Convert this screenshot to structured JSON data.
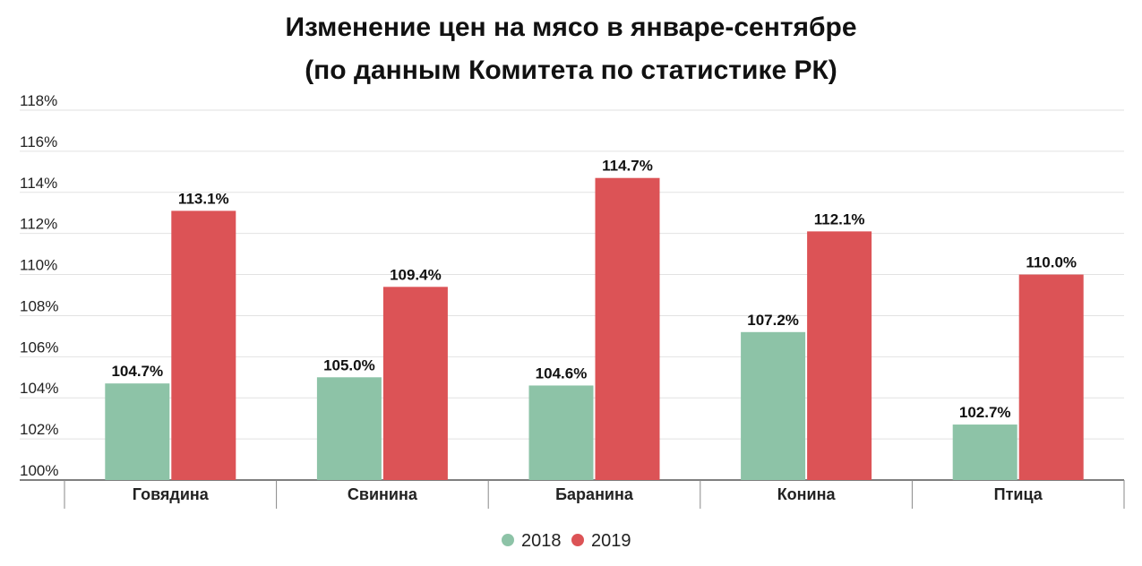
{
  "chart_data": {
    "type": "bar",
    "title": "Изменение цен на мясо в январе-сентябре",
    "subtitle": "(по данным Комитета по статистике РК)",
    "categories": [
      "Говядина",
      "Свинина",
      "Баранина",
      "Конина",
      "Птица"
    ],
    "series": [
      {
        "name": "2018",
        "color": "#8dc3a7",
        "values": [
          104.7,
          105.0,
          104.6,
          107.2,
          102.7
        ],
        "labels": [
          "104.7%",
          "105.0%",
          "104.6%",
          "107.2%",
          "102.7%"
        ]
      },
      {
        "name": "2019",
        "color": "#dc5356",
        "values": [
          113.1,
          109.4,
          114.7,
          112.1,
          110.0
        ],
        "labels": [
          "113.1%",
          "109.4%",
          "114.7%",
          "112.1%",
          "110.0%"
        ]
      }
    ],
    "ylim": [
      100,
      118
    ],
    "yticks": [
      100,
      102,
      104,
      106,
      108,
      110,
      112,
      114,
      116,
      118
    ],
    "ytick_labels": [
      "100%",
      "102%",
      "104%",
      "106%",
      "108%",
      "110%",
      "112%",
      "114%",
      "116%",
      "118%"
    ],
    "grid": true,
    "legend_position": "bottom"
  }
}
